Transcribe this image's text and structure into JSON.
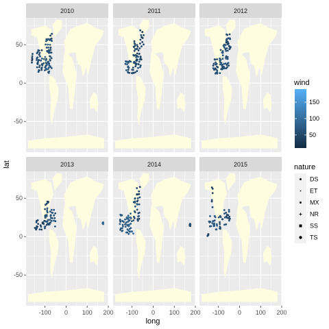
{
  "chart_data": {
    "type": "scatter",
    "subtype": "faceted-map",
    "facets": [
      "2010",
      "2011",
      "2012",
      "2013",
      "2014",
      "2015"
    ],
    "xlabel": "long",
    "ylabel": "lat",
    "xlim": [
      -190,
      200
    ],
    "ylim": [
      -90,
      85
    ],
    "x_ticks": [
      -100,
      0,
      100,
      200
    ],
    "x_tick_labels": [
      "-100",
      "0",
      "100",
      "200"
    ],
    "y_ticks": [
      -50,
      0,
      50
    ],
    "y_tick_labels": [
      "-50",
      "0",
      "50"
    ],
    "grid": true,
    "panel_background": "#ebebeb",
    "land_color": "#fffde0",
    "legend_placement": "right",
    "color_legend": {
      "title": "wind",
      "min": 10,
      "max": 190,
      "ticks": [
        50,
        100,
        150
      ],
      "tick_labels": [
        "50",
        "100",
        "150"
      ],
      "low_color": "#132b43",
      "high_color": "#56b1f7"
    },
    "shape_legend": {
      "title": "nature",
      "entries": [
        "DS",
        "ET",
        "MX",
        "NR",
        "SS",
        "TS"
      ],
      "shapes": [
        "circle",
        "triangle",
        "square",
        "plus",
        "square-filled",
        "circle-filled"
      ]
    },
    "storm_clusters": {
      "2010": [
        {
          "lon": -160,
          "lat": 32,
          "w": 6,
          "h": 14,
          "wind": 40
        },
        {
          "lon": -110,
          "lat": 28,
          "w": 60,
          "h": 30,
          "wind": 55
        },
        {
          "lon": -85,
          "lat": 38,
          "w": 35,
          "h": 40,
          "wind": 70
        },
        {
          "lon": -70,
          "lat": 55,
          "w": 10,
          "h": 20,
          "wind": 45
        }
      ],
      "2011": [
        {
          "lon": -110,
          "lat": 20,
          "w": 55,
          "h": 18,
          "wind": 60
        },
        {
          "lon": -75,
          "lat": 35,
          "w": 40,
          "h": 40,
          "wind": 50
        },
        {
          "lon": -55,
          "lat": 60,
          "w": 20,
          "h": 20,
          "wind": 40
        }
      ],
      "2012": [
        {
          "lon": -105,
          "lat": 22,
          "w": 55,
          "h": 20,
          "wind": 55
        },
        {
          "lon": -70,
          "lat": 38,
          "w": 40,
          "h": 40,
          "wind": 65
        },
        {
          "lon": -55,
          "lat": 55,
          "w": 25,
          "h": 25,
          "wind": 45
        }
      ],
      "2013": [
        {
          "lon": -120,
          "lat": 15,
          "w": 60,
          "h": 14,
          "wind": 50
        },
        {
          "lon": -75,
          "lat": 25,
          "w": 55,
          "h": 25,
          "wind": 60
        },
        {
          "lon": -90,
          "lat": 42,
          "w": 20,
          "h": 10,
          "wind": 45
        },
        {
          "lon": 175,
          "lat": 18,
          "w": 4,
          "h": 4,
          "wind": 80
        }
      ],
      "2014": [
        {
          "lon": -140,
          "lat": 18,
          "w": 40,
          "h": 22,
          "wind": 70
        },
        {
          "lon": -110,
          "lat": 18,
          "w": 35,
          "h": 30,
          "wind": 85
        },
        {
          "lon": -80,
          "lat": 35,
          "w": 30,
          "h": 30,
          "wind": 55
        },
        {
          "lon": -70,
          "lat": 55,
          "w": 15,
          "h": 20,
          "wind": 45
        },
        {
          "lon": 175,
          "lat": 15,
          "w": 4,
          "h": 4,
          "wind": 60
        }
      ],
      "2015": [
        {
          "lon": -125,
          "lat": 18,
          "w": 40,
          "h": 18,
          "wind": 70
        },
        {
          "lon": -90,
          "lat": 20,
          "w": 20,
          "h": 20,
          "wind": 60
        },
        {
          "lon": -60,
          "lat": 25,
          "w": 30,
          "h": 20,
          "wind": 55
        },
        {
          "lon": -130,
          "lat": 50,
          "w": 6,
          "h": 30,
          "wind": 40
        },
        {
          "lon": -150,
          "lat": 3,
          "w": 6,
          "h": 6,
          "wind": 50
        }
      ]
    }
  }
}
